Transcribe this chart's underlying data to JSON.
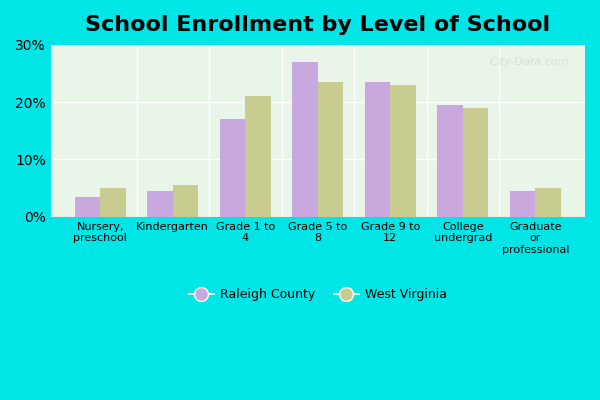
{
  "title": "School Enrollment by Level of School",
  "categories": [
    "Nursery,\npreschool",
    "Kindergarten",
    "Grade 1 to\n4",
    "Grade 5 to\n8",
    "Grade 9 to\n12",
    "College\nundergrad",
    "Graduate\nor\nprofessional"
  ],
  "raleigh": [
    3.5,
    4.5,
    17.0,
    27.0,
    23.5,
    19.5,
    4.5
  ],
  "west_virginia": [
    5.0,
    5.5,
    21.0,
    23.5,
    23.0,
    19.0,
    5.0
  ],
  "raleigh_color": "#c9a8e0",
  "wv_color": "#c8cc90",
  "background_color": "#e8f5e8",
  "outer_background": "#00e5e5",
  "ylim": [
    0,
    30
  ],
  "yticks": [
    0,
    10,
    20,
    30
  ],
  "bar_width": 0.35,
  "title_fontsize": 16,
  "legend_raleigh": "Raleigh County",
  "legend_wv": "West Virginia",
  "watermark": "City-Data.com"
}
